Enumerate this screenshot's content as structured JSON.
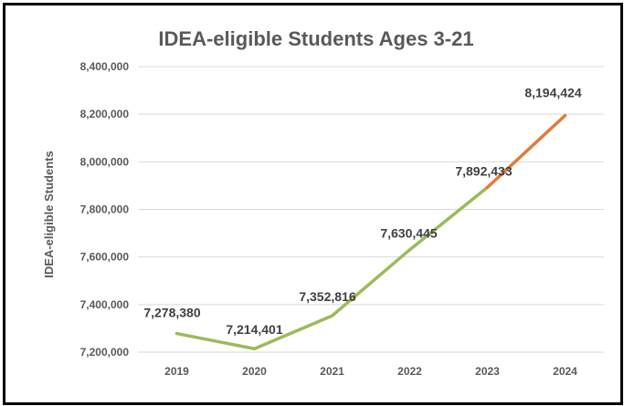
{
  "chart_data": {
    "type": "line",
    "title": "IDEA-eligible Students Ages 3-21",
    "xlabel": "",
    "ylabel": "IDEA-eligible Students",
    "categories": [
      "2019",
      "2020",
      "2021",
      "2022",
      "2023",
      "2024"
    ],
    "values": [
      7278380,
      7214401,
      7352816,
      7630445,
      7892433,
      8194424
    ],
    "data_labels": [
      "7,278,380",
      "7,214,401",
      "7,352,816",
      "7,630,445",
      "7,892,433",
      "8,194,424"
    ],
    "ylim": [
      7200000,
      8400000
    ],
    "yticks": [
      7200000,
      7400000,
      7600000,
      7800000,
      8000000,
      8200000,
      8400000
    ],
    "ytick_labels": [
      "7,200,000",
      "7,400,000",
      "7,600,000",
      "7,800,000",
      "8,000,000",
      "8,200,000",
      "8,400,000"
    ],
    "grid": true,
    "series_colors": {
      "primary": "#9bbb59",
      "projected": "#e07b39"
    },
    "segments": [
      {
        "from": "2019",
        "to": "2023",
        "color": "#9bbb59"
      },
      {
        "from": "2023",
        "to": "2024",
        "color": "#e07b39"
      }
    ]
  }
}
